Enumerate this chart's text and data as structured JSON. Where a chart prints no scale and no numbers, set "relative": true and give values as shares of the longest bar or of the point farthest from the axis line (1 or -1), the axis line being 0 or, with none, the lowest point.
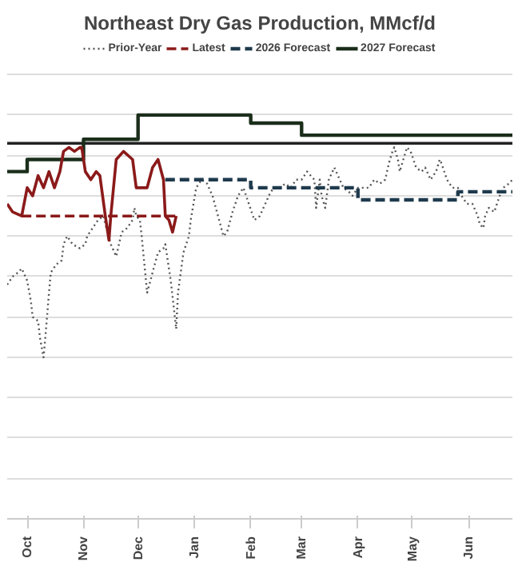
{
  "chart_data": {
    "type": "line",
    "title": "Northeast Dry Gas Production, MMcf/d",
    "relative": true,
    "grid": "y",
    "legend": "top",
    "xlim": [
      "2025-09-20",
      "2026-06-25"
    ],
    "xticks": [
      {
        "value": "2025-10-01",
        "label": "Oct"
      },
      {
        "value": "2025-11-01",
        "label": "Nov"
      },
      {
        "value": "2025-12-01",
        "label": "Dec"
      },
      {
        "value": "2026-01-01",
        "label": "Jan"
      },
      {
        "value": "2026-02-01",
        "label": "Feb"
      },
      {
        "value": "2026-03-01",
        "label": "Mar"
      },
      {
        "value": "2026-04-01",
        "label": "Apr"
      },
      {
        "value": "2026-05-01",
        "label": "May"
      },
      {
        "value": "2026-06-01",
        "label": "Jun"
      }
    ],
    "series": [
      {
        "color": "#222222",
        "line_style": "solid",
        "x": [
          "2025-09-20",
          "2026-06-25"
        ],
        "values": [
          0.93,
          0.93
        ]
      },
      {
        "name": "Prior-Year",
        "color": "#555555",
        "line_style": "dotted",
        "x": [
          "2025-09-20",
          "2025-09-23",
          "2025-09-26",
          "2025-09-28",
          "2025-10-01",
          "2025-10-03",
          "2025-10-04",
          "2025-10-07",
          "2025-10-08",
          "2025-10-10",
          "2025-10-11",
          "2025-10-13",
          "2025-10-14",
          "2025-10-17",
          "2025-10-20",
          "2025-10-21",
          "2025-10-23",
          "2025-10-26",
          "2025-10-30",
          "2025-11-02",
          "2025-11-03",
          "2025-11-06",
          "2025-11-09",
          "2025-11-12",
          "2025-11-13",
          "2025-11-16",
          "2025-11-19",
          "2025-11-20",
          "2025-11-22",
          "2025-11-25",
          "2025-11-28",
          "2025-11-29",
          "2025-11-30",
          "2025-12-02",
          "2025-12-03",
          "2025-12-06",
          "2025-12-09",
          "2025-12-12",
          "2025-12-15",
          "2025-12-16",
          "2025-12-19",
          "2025-12-22",
          "2025-12-23",
          "2025-12-26",
          "2025-12-29",
          "2025-12-30",
          "2026-01-02",
          "2026-01-05",
          "2026-01-08",
          "2026-01-11",
          "2026-01-14",
          "2026-01-17",
          "2026-01-19",
          "2026-01-22",
          "2026-01-25",
          "2026-01-28",
          "2026-01-31",
          "2026-02-03",
          "2026-02-06",
          "2026-02-09",
          "2026-02-12",
          "2026-02-14",
          "2026-02-17",
          "2026-02-20",
          "2026-02-23",
          "2026-02-26",
          "2026-03-01",
          "2026-03-04",
          "2026-03-06",
          "2026-03-08",
          "2026-03-09",
          "2026-03-11",
          "2026-03-12",
          "2026-03-14",
          "2026-03-16",
          "2026-03-19",
          "2026-03-21",
          "2026-03-24",
          "2026-03-27",
          "2026-03-29",
          "2026-04-01",
          "2026-04-04",
          "2026-04-07",
          "2026-04-10",
          "2026-04-13",
          "2026-04-16",
          "2026-04-18",
          "2026-04-20",
          "2026-04-21",
          "2026-04-23",
          "2026-04-24",
          "2026-04-26",
          "2026-04-28",
          "2026-04-30",
          "2026-05-03",
          "2026-05-06",
          "2026-05-08",
          "2026-05-11",
          "2026-05-14",
          "2026-05-16",
          "2026-05-17",
          "2026-05-20",
          "2026-05-23",
          "2026-05-26",
          "2026-05-28",
          "2026-05-31",
          "2026-06-03",
          "2026-06-06",
          "2026-06-07",
          "2026-06-09",
          "2026-06-10",
          "2026-06-12",
          "2026-06-15",
          "2026-06-18",
          "2026-06-20",
          "2026-06-23",
          "2026-06-25"
        ],
        "values": [
          0.58,
          0.6,
          0.61,
          0.62,
          0.59,
          0.54,
          0.5,
          0.49,
          0.45,
          0.4,
          0.45,
          0.56,
          0.61,
          0.63,
          0.64,
          0.68,
          0.7,
          0.68,
          0.67,
          0.68,
          0.7,
          0.72,
          0.74,
          0.75,
          0.73,
          0.68,
          0.65,
          0.67,
          0.71,
          0.72,
          0.74,
          0.77,
          0.75,
          0.74,
          0.7,
          0.56,
          0.61,
          0.66,
          0.67,
          0.68,
          0.59,
          0.47,
          0.56,
          0.66,
          0.7,
          0.74,
          0.82,
          0.84,
          0.83,
          0.8,
          0.75,
          0.7,
          0.71,
          0.76,
          0.8,
          0.82,
          0.78,
          0.74,
          0.75,
          0.78,
          0.81,
          0.82,
          0.82,
          0.83,
          0.82,
          0.84,
          0.84,
          0.86,
          0.85,
          0.84,
          0.77,
          0.84,
          0.8,
          0.77,
          0.84,
          0.87,
          0.85,
          0.82,
          0.81,
          0.8,
          0.82,
          0.82,
          0.82,
          0.84,
          0.83,
          0.84,
          0.88,
          0.91,
          0.92,
          0.89,
          0.86,
          0.89,
          0.92,
          0.91,
          0.87,
          0.86,
          0.87,
          0.84,
          0.86,
          0.89,
          0.88,
          0.84,
          0.82,
          0.82,
          0.8,
          0.78,
          0.78,
          0.75,
          0.73,
          0.72,
          0.75,
          0.77,
          0.76,
          0.8,
          0.82,
          0.83,
          0.84
        ]
      },
      {
        "name": "Latest",
        "color": "#8b1a1a",
        "line_style": "dashed",
        "x": [
          "2025-09-28",
          "2025-12-22"
        ],
        "values": [
          0.75,
          0.75
        ]
      },
      {
        "name": "2026 Forecast",
        "type": "step",
        "color": "#1f3a4d",
        "line_style": "dashed",
        "x": [
          "2025-12-16",
          "2026-02-01",
          "2026-04-01",
          "2026-05-26",
          "2026-06-25"
        ],
        "values": [
          0.84,
          0.82,
          0.79,
          0.81,
          0.81
        ]
      },
      {
        "name": "2027 Forecast",
        "type": "step",
        "color": "#1b2e1b",
        "line_style": "solid",
        "x": [
          "2025-09-20",
          "2025-10-01",
          "2025-11-01",
          "2025-12-01",
          "2026-02-01",
          "2026-03-01",
          "2026-06-25"
        ],
        "values": [
          0.86,
          0.89,
          0.94,
          1,
          0.98,
          0.95,
          0.95
        ]
      },
      {
        "color": "#8b1a1a",
        "line_style": "solid",
        "x": [
          "2025-09-20",
          "2025-09-23",
          "2025-09-28",
          "2025-10-01",
          "2025-10-04",
          "2025-10-07",
          "2025-10-10",
          "2025-10-13",
          "2025-10-16",
          "2025-10-19",
          "2025-10-21",
          "2025-10-24",
          "2025-10-27",
          "2025-10-30",
          "2025-10-31",
          "2025-11-02",
          "2025-11-05",
          "2025-11-08",
          "2025-11-10",
          "2025-11-13",
          "2025-11-15",
          "2025-11-16",
          "2025-11-19",
          "2025-11-23",
          "2025-11-28",
          "2025-11-30",
          "2025-12-03",
          "2025-12-06",
          "2025-12-09",
          "2025-12-12",
          "2025-12-15",
          "2025-12-16",
          "2025-12-18",
          "2025-12-20",
          "2025-12-22"
        ],
        "values": [
          0.78,
          0.76,
          0.75,
          0.82,
          0.8,
          0.85,
          0.82,
          0.86,
          0.82,
          0.86,
          0.91,
          0.92,
          0.91,
          0.92,
          0.92,
          0.86,
          0.84,
          0.86,
          0.85,
          0.75,
          0.69,
          0.75,
          0.89,
          0.91,
          0.89,
          0.82,
          0.82,
          0.82,
          0.87,
          0.89,
          0.84,
          0.75,
          0.74,
          0.71,
          0.75
        ]
      }
    ]
  }
}
